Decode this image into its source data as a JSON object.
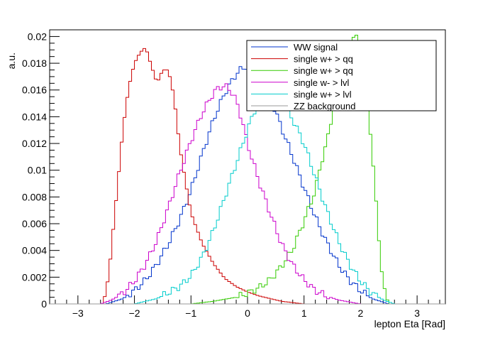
{
  "chart_data": {
    "type": "line",
    "style": "step-histogram",
    "xlabel": "lepton Eta [Rad]",
    "ylabel": "a.u.",
    "xlim": [
      -3.5,
      3.5
    ],
    "ylim": [
      0,
      0.0205
    ],
    "x_ticks": [
      -3,
      -2,
      -1,
      0,
      1,
      2,
      3
    ],
    "x_tick_labels": [
      "−3",
      "−2",
      "−1",
      "0",
      "1",
      "2",
      "3"
    ],
    "y_ticks": [
      0,
      0.002,
      0.004,
      0.006,
      0.008,
      0.01,
      0.012,
      0.014,
      0.016,
      0.018,
      0.02
    ],
    "y_tick_labels": [
      "0",
      "0.002",
      "0.004",
      "0.006",
      "0.008",
      "0.01",
      "0.012",
      "0.014",
      "0.016",
      "0.018",
      "0.02"
    ],
    "grid": false,
    "legend_position": "top-right",
    "series": [
      {
        "name": "WW signal",
        "color": "#0033cc",
        "x": [
          -2.5,
          -2.2,
          -2.0,
          -1.8,
          -1.6,
          -1.4,
          -1.2,
          -1.0,
          -0.8,
          -0.6,
          -0.4,
          -0.3,
          -0.2,
          -0.1,
          0.0,
          0.1,
          0.2,
          0.4,
          0.6,
          0.8,
          1.0,
          1.2,
          1.4,
          1.6,
          1.8,
          2.0,
          2.2,
          2.5
        ],
        "y": [
          0.0,
          0.0004,
          0.001,
          0.0018,
          0.003,
          0.0045,
          0.0063,
          0.0085,
          0.0112,
          0.0138,
          0.0158,
          0.0165,
          0.0172,
          0.0176,
          0.0178,
          0.0176,
          0.017,
          0.0155,
          0.0132,
          0.011,
          0.0087,
          0.0065,
          0.0046,
          0.003,
          0.0018,
          0.001,
          0.0004,
          0.0
        ]
      },
      {
        "name": "single w+ > qq",
        "color": "#cc0000",
        "x": [
          -2.55,
          -2.45,
          -2.4,
          -2.3,
          -2.2,
          -2.1,
          -2.0,
          -1.9,
          -1.8,
          -1.7,
          -1.6,
          -1.5,
          -1.4,
          -1.3,
          -1.2,
          -1.1,
          -1.0,
          -0.8,
          -0.6,
          -0.4,
          -0.2,
          0.0,
          0.2,
          0.4,
          0.6,
          0.8,
          1.0
        ],
        "y": [
          0.0,
          0.0022,
          0.0045,
          0.0088,
          0.0132,
          0.0162,
          0.018,
          0.0188,
          0.0192,
          0.0178,
          0.0165,
          0.0175,
          0.0175,
          0.0155,
          0.0118,
          0.0092,
          0.0068,
          0.0045,
          0.003,
          0.0019,
          0.0013,
          0.0009,
          0.0006,
          0.0004,
          0.0002,
          0.0001,
          0.0
        ]
      },
      {
        "name": "single w+ > qq",
        "color": "#33cc00",
        "x": [
          -1.0,
          -0.6,
          -0.2,
          0.0,
          0.2,
          0.4,
          0.6,
          0.8,
          1.0,
          1.2,
          1.3,
          1.4,
          1.5,
          1.6,
          1.7,
          1.8,
          1.9,
          2.0,
          2.1,
          2.2,
          2.3,
          2.4,
          2.5
        ],
        "y": [
          0.0,
          0.0002,
          0.0005,
          0.0008,
          0.0012,
          0.0018,
          0.0028,
          0.0041,
          0.0062,
          0.0085,
          0.0105,
          0.012,
          0.0142,
          0.0165,
          0.0186,
          0.0196,
          0.02,
          0.0195,
          0.0172,
          0.0115,
          0.0062,
          0.0012,
          0.0
        ]
      },
      {
        "name": "single w- > lvl",
        "color": "#cc00cc",
        "x": [
          -2.6,
          -2.4,
          -2.2,
          -2.0,
          -1.8,
          -1.6,
          -1.4,
          -1.2,
          -1.0,
          -0.8,
          -0.6,
          -0.5,
          -0.4,
          -0.3,
          -0.2,
          -0.1,
          0.0,
          0.2,
          0.4,
          0.6,
          0.8,
          1.0,
          1.2,
          1.4,
          1.6,
          2.0
        ],
        "y": [
          0.0,
          0.0003,
          0.0008,
          0.0017,
          0.003,
          0.0048,
          0.0072,
          0.0098,
          0.0122,
          0.0143,
          0.0158,
          0.0162,
          0.0163,
          0.016,
          0.0152,
          0.0138,
          0.012,
          0.0092,
          0.0068,
          0.0045,
          0.0029,
          0.0018,
          0.001,
          0.0006,
          0.0003,
          0.0
        ]
      },
      {
        "name": "single w+ > lvl",
        "color": "#00cccc",
        "x": [
          -2.0,
          -1.6,
          -1.2,
          -1.0,
          -0.8,
          -0.6,
          -0.4,
          -0.2,
          0.0,
          0.1,
          0.2,
          0.3,
          0.4,
          0.5,
          0.6,
          0.8,
          1.0,
          1.2,
          1.4,
          1.6,
          1.8,
          2.0,
          2.2,
          2.4,
          2.6
        ],
        "y": [
          0.0,
          0.0004,
          0.0013,
          0.0021,
          0.0035,
          0.0055,
          0.008,
          0.0105,
          0.013,
          0.0142,
          0.0152,
          0.0158,
          0.016,
          0.0158,
          0.0152,
          0.0138,
          0.012,
          0.0095,
          0.007,
          0.0048,
          0.003,
          0.0017,
          0.0008,
          0.0003,
          0.0
        ]
      },
      {
        "name": "ZZ background",
        "color": "#999999",
        "x": [
          -3.5,
          3.5
        ],
        "y": [
          0.0,
          0.0
        ]
      }
    ]
  }
}
